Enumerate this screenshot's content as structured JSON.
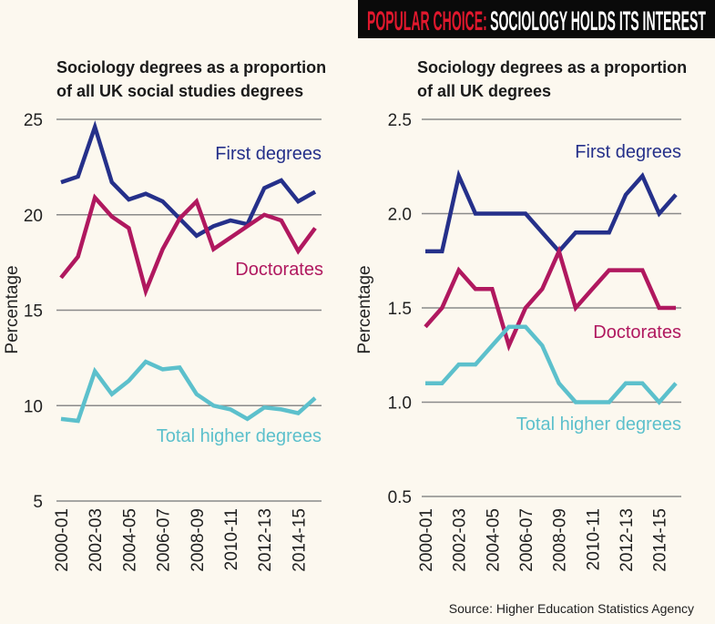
{
  "header": {
    "title_red": "POPULAR CHOICE:",
    "title_white": "SOCIOLOGY HOLDS ITS INTEREST"
  },
  "source": "Source: Higher Education Statistics Agency",
  "colors": {
    "first_degrees": "#25308a",
    "doctorates": "#b0185f",
    "total_higher_degrees": "#5cc0cc",
    "header_bg": "#0a0a0a",
    "header_red": "#e0182d",
    "background": "#fcf8ef",
    "grid": "#8a8a8a"
  },
  "chart_data": [
    {
      "type": "line",
      "title_lines": [
        "Sociology degrees as a proportion",
        "of all UK social studies degrees"
      ],
      "ylabel": "Percentage",
      "xlabel": "",
      "ylim": [
        5,
        25
      ],
      "yticks": [
        "5",
        "10",
        "15",
        "20",
        "25"
      ],
      "grid": true,
      "x": [
        "2000-01",
        "2001-02",
        "2002-03",
        "2003-04",
        "2004-05",
        "2005-06",
        "2006-07",
        "2007-08",
        "2008-09",
        "2009-10",
        "2010-11",
        "2011-12",
        "2012-13",
        "2013-14",
        "2014-15",
        "2015-16"
      ],
      "xticklabels": [
        "2000-01",
        "2002-03",
        "2004-05",
        "2006-07",
        "2008-09",
        "2010-11",
        "2012-13",
        "2014-15"
      ],
      "series": [
        {
          "name": "First degrees",
          "color": "#25308a",
          "values": [
            21.7,
            22.0,
            24.6,
            21.7,
            20.8,
            21.1,
            20.7,
            19.8,
            18.9,
            19.4,
            19.7,
            19.5,
            21.4,
            21.8,
            20.7,
            21.2
          ]
        },
        {
          "name": "Doctorates",
          "color": "#b0185f",
          "values": [
            16.7,
            17.8,
            20.9,
            19.9,
            19.3,
            16.0,
            18.2,
            19.8,
            20.7,
            18.2,
            18.8,
            19.4,
            20.0,
            19.7,
            18.1,
            19.3
          ]
        },
        {
          "name": "Total higher degrees",
          "color": "#5cc0cc",
          "values": [
            9.3,
            9.2,
            11.8,
            10.6,
            11.3,
            12.3,
            11.9,
            12.0,
            10.6,
            10.0,
            9.8,
            9.3,
            9.9,
            9.8,
            9.6,
            10.4
          ]
        }
      ]
    },
    {
      "type": "line",
      "title_lines": [
        "Sociology degrees as a proportion",
        "of all UK degrees"
      ],
      "ylabel": "Percentage",
      "xlabel": "",
      "ylim": [
        0.5,
        2.5
      ],
      "yticks": [
        "0.5",
        "1.0",
        "1.5",
        "2.0",
        "2.5"
      ],
      "grid": true,
      "x": [
        "2000-01",
        "2001-02",
        "2002-03",
        "2003-04",
        "2004-05",
        "2005-06",
        "2006-07",
        "2007-08",
        "2008-09",
        "2009-10",
        "2010-11",
        "2011-12",
        "2012-13",
        "2013-14",
        "2014-15",
        "2015-16"
      ],
      "xticklabels": [
        "2000-01",
        "2002-03",
        "2004-05",
        "2006-07",
        "2008-09",
        "2010-11",
        "2012-13",
        "2014-15"
      ],
      "series": [
        {
          "name": "First degrees",
          "color": "#25308a",
          "values": [
            1.8,
            1.8,
            2.2,
            2.0,
            2.0,
            2.0,
            2.0,
            1.9,
            1.8,
            1.9,
            1.9,
            1.9,
            2.1,
            2.2,
            2.0,
            2.1
          ]
        },
        {
          "name": "Doctorates",
          "color": "#b0185f",
          "values": [
            1.4,
            1.5,
            1.7,
            1.6,
            1.6,
            1.3,
            1.5,
            1.6,
            1.8,
            1.5,
            1.6,
            1.7,
            1.7,
            1.7,
            1.5,
            1.5
          ]
        },
        {
          "name": "Total higher degrees",
          "color": "#5cc0cc",
          "values": [
            1.1,
            1.1,
            1.2,
            1.2,
            1.3,
            1.4,
            1.4,
            1.3,
            1.1,
            1.0,
            1.0,
            1.0,
            1.1,
            1.1,
            1.0,
            1.1
          ]
        }
      ]
    }
  ]
}
